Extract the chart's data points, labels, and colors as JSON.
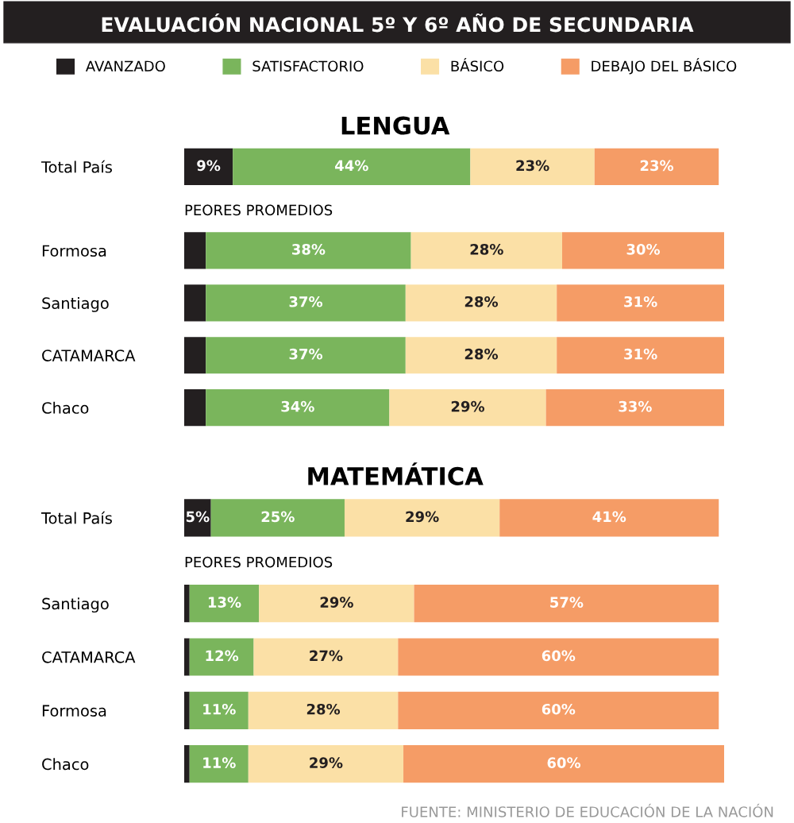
{
  "chart_data": [
    {
      "type": "bar",
      "orientation": "horizontal",
      "stacked": true,
      "title": "EVALUACIÓN NACIONAL 5º Y 6º AÑO DE SECUNDARIA",
      "subtitle": "LENGUA",
      "categories": [
        "Total País",
        "Formosa",
        "Santiago",
        "CATAMARCA",
        "Chaco"
      ],
      "tick_labels": "y",
      "legend": "top",
      "grid": false,
      "series": [
        {
          "name": "AVANZADO",
          "color": "#231f20",
          "values": [
            9,
            4,
            4,
            4,
            4
          ],
          "value_labels": [
            "9%",
            null,
            null,
            null,
            null
          ]
        },
        {
          "name": "SATISFACTORIO",
          "color": "#7ab55c",
          "values": [
            44,
            38,
            37,
            37,
            34
          ],
          "value_labels": [
            "44%",
            "38%",
            "37%",
            "37%",
            "34%"
          ]
        },
        {
          "name": "BÁSICO",
          "color": "#fbe0a6",
          "values": [
            23,
            28,
            28,
            28,
            29
          ],
          "value_labels": [
            "23%",
            "28%",
            "28%",
            "28%",
            "29%"
          ]
        },
        {
          "name": "DEBAJO DEL BÁSICO",
          "color": "#f59c66",
          "values": [
            23,
            30,
            31,
            31,
            33
          ],
          "value_labels": [
            "23%",
            "30%",
            "31%",
            "31%",
            "33%"
          ]
        }
      ],
      "annotations": [
        "PEORES PROMEDIOS"
      ]
    },
    {
      "type": "bar",
      "orientation": "horizontal",
      "stacked": true,
      "subtitle": "MATEMÁTICA",
      "categories": [
        "Total País",
        "Santiago",
        "CATAMARCA",
        "Formosa",
        "Chaco"
      ],
      "tick_labels": "y",
      "grid": false,
      "series": [
        {
          "color": "#231f20",
          "values": [
            5,
            1,
            1,
            1,
            1
          ],
          "value_labels": [
            "5%",
            null,
            null,
            null,
            null
          ]
        },
        {
          "color": "#7ab55c",
          "values": [
            25,
            13,
            12,
            11,
            11
          ],
          "value_labels": [
            "25%",
            "13%",
            "12%",
            "11%",
            "11%"
          ]
        },
        {
          "color": "#fbe0a6",
          "values": [
            29,
            29,
            27,
            28,
            29
          ],
          "value_labels": [
            "29%",
            "29%",
            "27%",
            "28%",
            "29%"
          ]
        },
        {
          "color": "#f59c66",
          "values": [
            41,
            57,
            60,
            60,
            60
          ],
          "value_labels": [
            "41%",
            "57%",
            "60%",
            "60%",
            "60%"
          ]
        }
      ],
      "annotations": [
        "PEORES PROMEDIOS",
        "FUENTE: MINISTERIO DE EDUCACIÓN DE LA NACIÓN"
      ]
    }
  ]
}
